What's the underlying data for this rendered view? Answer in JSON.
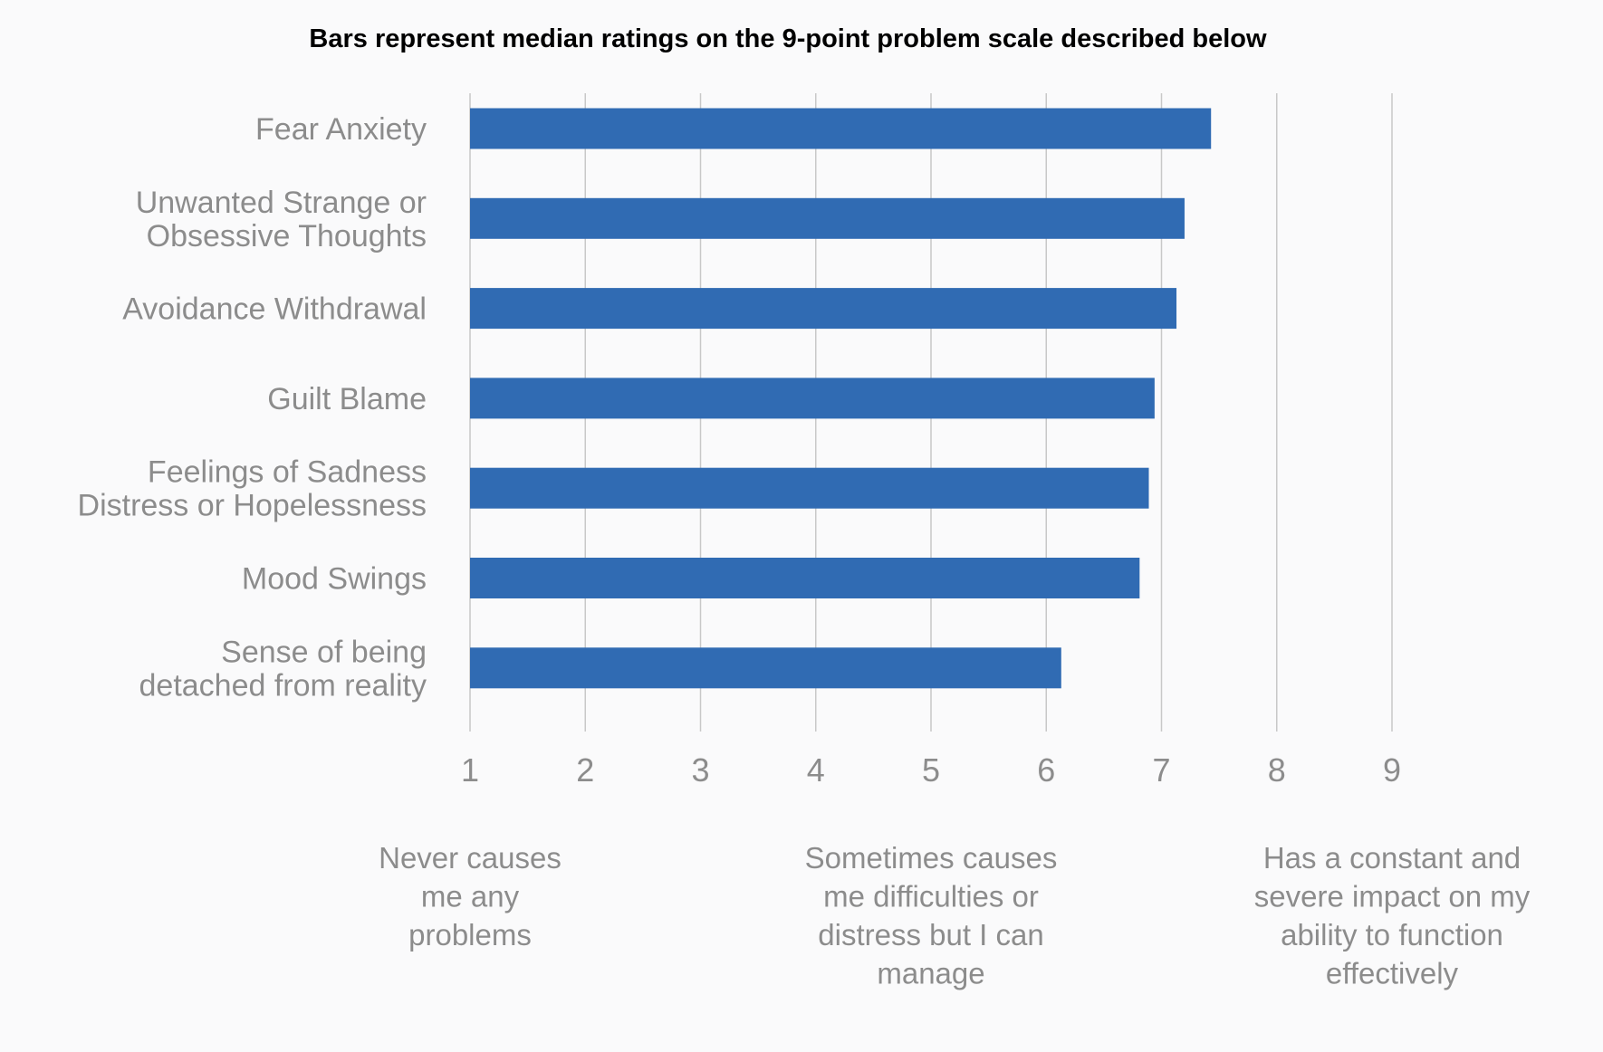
{
  "chart_data": {
    "type": "bar",
    "orientation": "horizontal",
    "title": "Bars represent median ratings on the 9-point problem scale described below",
    "categories": [
      [
        "Fear Anxiety"
      ],
      [
        "Unwanted Strange or",
        "Obsessive Thoughts"
      ],
      [
        "Avoidance Withdrawal"
      ],
      [
        "Guilt Blame"
      ],
      [
        "Feelings of Sadness",
        "Distress or Hopelessness"
      ],
      [
        "Mood Swings"
      ],
      [
        "Sense of being",
        "detached from reality"
      ]
    ],
    "values": [
      7.43,
      7.2,
      7.13,
      6.94,
      6.89,
      6.81,
      6.13
    ],
    "xlim": [
      1,
      9
    ],
    "ticks": [
      1,
      2,
      3,
      4,
      5,
      6,
      7,
      8,
      9
    ],
    "grid": true,
    "legend": "none",
    "bar_color": "#306bb3",
    "scale_anchors": [
      {
        "at": 1,
        "lines": [
          "Never causes",
          "me any",
          "problems"
        ]
      },
      {
        "at": 5,
        "lines": [
          "Sometimes causes",
          "me difficulties or",
          "distress but I can",
          "manage"
        ]
      },
      {
        "at": 9,
        "lines": [
          "Has a constant and",
          "severe impact on my",
          "ability to function",
          "effectively"
        ]
      }
    ]
  }
}
